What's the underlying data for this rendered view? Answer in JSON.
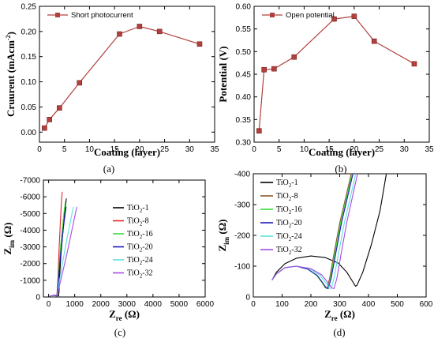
{
  "chart_data": [
    {
      "panel": "(a)",
      "type": "line",
      "xlabel": "Coating  (layer)",
      "ylabel": "Cruurent (mAcm",
      "ylabel_sup": "-2",
      "ylabel_end": ")",
      "xlim": [
        0,
        35
      ],
      "ylim": [
        -0.02,
        0.25
      ],
      "xticks": [
        "0",
        "5",
        "10",
        "15",
        "20",
        "25",
        "30",
        "35"
      ],
      "yticks": [
        "0.00",
        "0.05",
        "0.10",
        "0.15",
        "0.20",
        "0.25"
      ],
      "legend_position": "top-left",
      "series": [
        {
          "name": "Short photocurrent",
          "color": "#b0413e",
          "marker": "square",
          "x": [
            1,
            2,
            4,
            8,
            16,
            20,
            24,
            32
          ],
          "y": [
            0.008,
            0.025,
            0.048,
            0.098,
            0.195,
            0.21,
            0.2,
            0.175
          ]
        }
      ]
    },
    {
      "panel": "(b)",
      "type": "line",
      "xlabel": "Coating  (layer)",
      "ylabel": "Potential (V)",
      "xlim": [
        0,
        35
      ],
      "ylim": [
        0.3,
        0.6
      ],
      "xticks": [
        "0",
        "5",
        "10",
        "15",
        "20",
        "25",
        "30",
        "35"
      ],
      "yticks": [
        "0.30",
        "0.35",
        "0.40",
        "0.45",
        "0.50",
        "0.55",
        "0.60"
      ],
      "legend_position": "top-left",
      "series": [
        {
          "name": "Open potential",
          "color": "#b0413e",
          "marker": "square",
          "x": [
            1,
            2,
            4,
            8,
            16,
            20,
            24,
            32
          ],
          "y": [
            0.325,
            0.46,
            0.462,
            0.488,
            0.572,
            0.578,
            0.523,
            0.473
          ]
        }
      ]
    },
    {
      "panel": "(c)",
      "type": "line",
      "xlabel": "Z",
      "xlabel_sub": "re",
      "xlabel_unit": "(Ω)",
      "ylabel": "Z",
      "ylabel_sub": "im",
      "ylabel_unit": "(Ω)",
      "xlim": [
        -200,
        6000
      ],
      "ylim": [
        0,
        -7000
      ],
      "xticks": [
        "0",
        "1000",
        "2000",
        "3000",
        "4000",
        "5000",
        "6000"
      ],
      "yticks": [
        "0",
        "-1000",
        "-2000",
        "-3000",
        "-4000",
        "-5000",
        "-6000",
        "-7000"
      ],
      "legend_position": "right",
      "series": [
        {
          "name": "TiO",
          "sub": "2",
          "suffix": "-1",
          "color": "#000000",
          "x": [
            50,
            150,
            250,
            330,
            380,
            400,
            420,
            470,
            540,
            610,
            680
          ],
          "y": [
            -50,
            -90,
            -110,
            -80,
            -60,
            -300,
            -1200,
            -2500,
            -3800,
            -5000,
            -5900
          ]
        },
        {
          "name": "TiO",
          "sub": "2",
          "suffix": "-8",
          "color": "#e8262a",
          "x": [
            50,
            150,
            250,
            300,
            320,
            360,
            400,
            440,
            480,
            520
          ],
          "y": [
            -50,
            -90,
            -90,
            -60,
            -100,
            -1200,
            -2800,
            -4200,
            -5400,
            -6300
          ]
        },
        {
          "name": "TiO",
          "sub": "2",
          "suffix": "-16",
          "color": "#3bdc3b",
          "x": [
            50,
            150,
            250,
            300,
            320,
            370,
            430,
            500,
            570,
            640
          ],
          "y": [
            -50,
            -90,
            -90,
            -60,
            -100,
            -1100,
            -2500,
            -3700,
            -4800,
            -5700
          ]
        },
        {
          "name": "TiO",
          "sub": "2",
          "suffix": "-20",
          "color": "#1a1ab8",
          "x": [
            50,
            150,
            250,
            300,
            320,
            380,
            450,
            530,
            600,
            670
          ],
          "y": [
            -50,
            -90,
            -90,
            -60,
            -100,
            -1100,
            -2400,
            -3600,
            -4600,
            -5400
          ]
        },
        {
          "name": "TiO",
          "sub": "2",
          "suffix": "-24",
          "color": "#5fe0e0",
          "x": [
            50,
            150,
            250,
            300,
            330,
            420,
            540,
            680,
            820,
            950
          ],
          "y": [
            -50,
            -90,
            -90,
            -60,
            -100,
            -1000,
            -2100,
            -3300,
            -4400,
            -5400
          ]
        },
        {
          "name": "TiO",
          "sub": "2",
          "suffix": "-32",
          "color": "#a64ce6",
          "x": [
            50,
            150,
            250,
            300,
            330,
            450,
            600,
            760,
            920,
            1080
          ],
          "y": [
            -50,
            -90,
            -90,
            -60,
            -100,
            -900,
            -1900,
            -3000,
            -4200,
            -5400
          ]
        }
      ]
    },
    {
      "panel": "(d)",
      "type": "line",
      "xlabel": "Z",
      "xlabel_sub": "re",
      "xlabel_unit": "(Ω)",
      "ylabel": "Z",
      "ylabel_sub": "im",
      "ylabel_unit": "(Ω)",
      "xlim": [
        0,
        600
      ],
      "ylim": [
        0,
        -400
      ],
      "xticks": [
        "0",
        "100",
        "200",
        "300",
        "400",
        "500",
        "600"
      ],
      "yticks": [
        "0",
        "-100",
        "-200",
        "-300",
        "-400"
      ],
      "legend_position": "top-left",
      "series": [
        {
          "name": "TiO",
          "sub": "2",
          "suffix": "-1",
          "color": "#000000",
          "x": [
            65,
            80,
            110,
            150,
            200,
            250,
            295,
            325,
            345,
            355,
            360,
            380,
            410,
            440,
            462
          ],
          "y": [
            -55,
            -80,
            -108,
            -126,
            -133,
            -128,
            -110,
            -80,
            -50,
            -35,
            -38,
            -80,
            -170,
            -280,
            -400
          ]
        },
        {
          "name": "TiO",
          "sub": "2",
          "suffix": "-8",
          "color": "#8b5a2b",
          "x": [
            65,
            80,
            110,
            150,
            190,
            220,
            240,
            250,
            255,
            265,
            280,
            300,
            320,
            340
          ],
          "y": [
            -55,
            -75,
            -95,
            -100,
            -90,
            -70,
            -45,
            -30,
            -28,
            -60,
            -140,
            -240,
            -320,
            -400
          ]
        },
        {
          "name": "TiO",
          "sub": "2",
          "suffix": "-16",
          "color": "#3bdc3b",
          "x": [
            65,
            80,
            110,
            150,
            190,
            220,
            240,
            252,
            258,
            268,
            283,
            303,
            323,
            343
          ],
          "y": [
            -55,
            -75,
            -95,
            -100,
            -90,
            -70,
            -45,
            -30,
            -27,
            -60,
            -140,
            -240,
            -320,
            -400
          ]
        },
        {
          "name": "TiO",
          "sub": "2",
          "suffix": "-20",
          "color": "#1a1ab8",
          "x": [
            65,
            80,
            110,
            150,
            190,
            222,
            242,
            253,
            260,
            270,
            286,
            306,
            326,
            346
          ],
          "y": [
            -55,
            -75,
            -95,
            -100,
            -90,
            -70,
            -45,
            -30,
            -27,
            -60,
            -140,
            -240,
            -320,
            -400
          ]
        },
        {
          "name": "TiO",
          "sub": "2",
          "suffix": "-24",
          "color": "#5fe0e0",
          "x": [
            65,
            80,
            110,
            150,
            195,
            230,
            252,
            263,
            270,
            280,
            296,
            316,
            336,
            356
          ],
          "y": [
            -55,
            -75,
            -95,
            -100,
            -92,
            -72,
            -46,
            -30,
            -27,
            -60,
            -140,
            -240,
            -320,
            -400
          ]
        },
        {
          "name": "TiO",
          "sub": "2",
          "suffix": "-32",
          "color": "#a64ce6",
          "x": [
            65,
            80,
            110,
            150,
            200,
            237,
            260,
            272,
            280,
            290,
            305,
            324,
            343,
            362
          ],
          "y": [
            -55,
            -75,
            -95,
            -100,
            -92,
            -72,
            -46,
            -30,
            -27,
            -60,
            -140,
            -240,
            -320,
            -400
          ]
        }
      ]
    }
  ]
}
